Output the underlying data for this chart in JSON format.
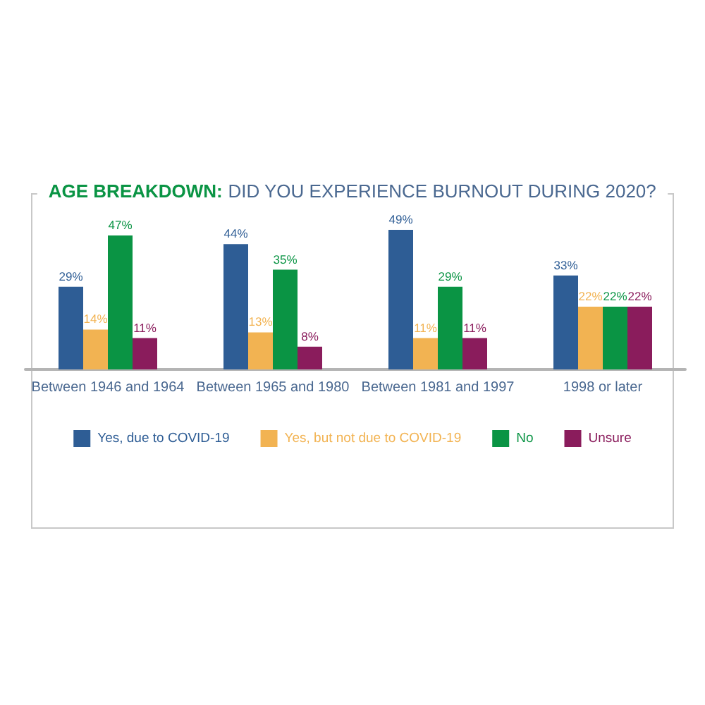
{
  "chart_data": {
    "type": "bar",
    "title": "AGE BREAKDOWN: DID YOU EXPERIENCE BURNOUT DURING 2020?",
    "categories": [
      "Between 1946 and 1964",
      "Between 1965 and 1980",
      "Between 1981 and 1997",
      "1998 or later"
    ],
    "series": [
      {
        "name": "Yes, due to COVID-19",
        "color": "#2e5d95",
        "values": [
          29,
          44,
          49,
          33
        ],
        "value_labels": [
          "29%",
          "44%",
          "49%",
          "33%"
        ]
      },
      {
        "name": "Yes, but not due to COVID-19",
        "color": "#f2b352",
        "values": [
          14,
          13,
          11,
          22
        ],
        "value_labels": [
          "14%",
          "13%",
          "11%",
          "22%"
        ]
      },
      {
        "name": "No",
        "color": "#0a9444",
        "values": [
          47,
          35,
          29,
          22
        ],
        "value_labels": [
          "47%",
          "35%",
          "29%",
          "22%"
        ]
      },
      {
        "name": "Unsure",
        "color": "#8a1c5c",
        "values": [
          11,
          8,
          11,
          22
        ],
        "value_labels": [
          "11%",
          "8%",
          "11%",
          "22%"
        ]
      }
    ],
    "legend": "bottom"
  }
}
